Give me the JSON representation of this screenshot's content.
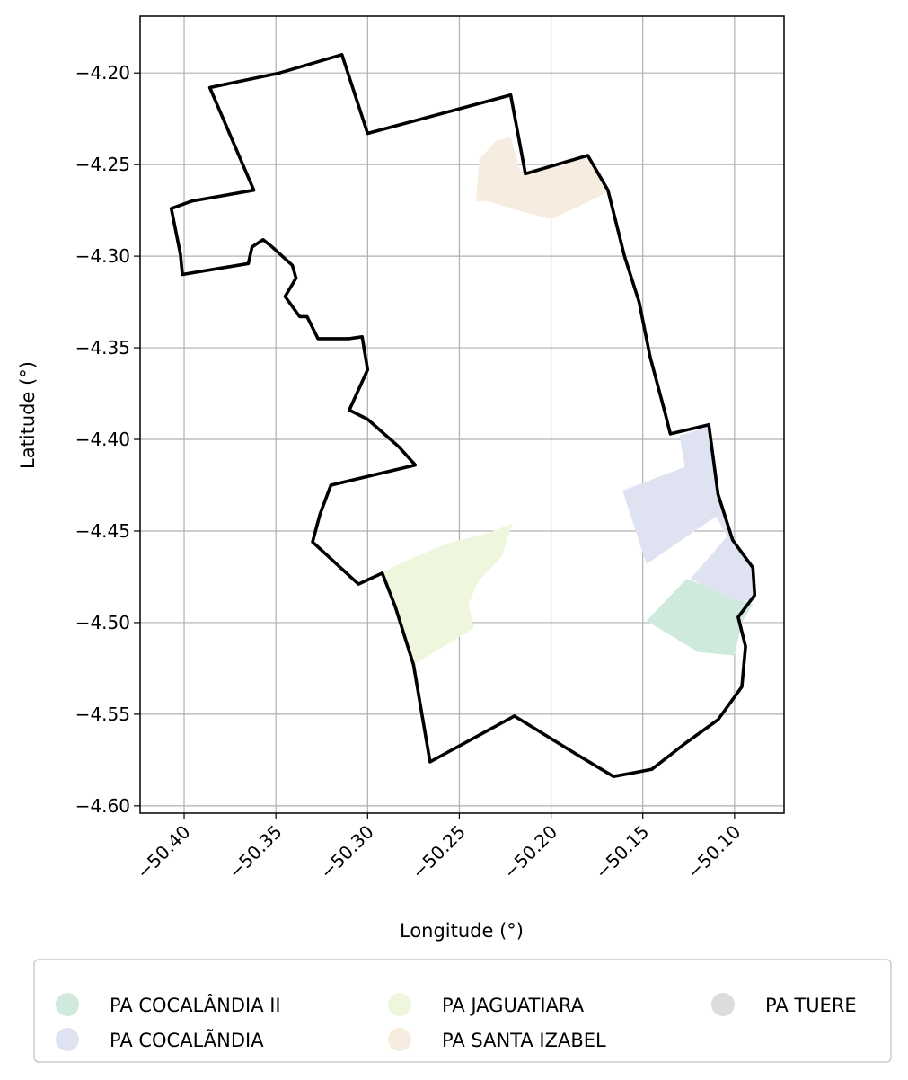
{
  "chart_data": {
    "type": "map",
    "xlabel": "Longitude (°)",
    "ylabel": "Latitude (°)",
    "xlim": [
      -50.424,
      -50.073
    ],
    "ylim": [
      -4.604,
      -4.169
    ],
    "x_ticks": [
      -50.4,
      -50.35,
      -50.3,
      -50.25,
      -50.2,
      -50.15,
      -50.1
    ],
    "x_tick_labels": [
      "−50.40",
      "−50.35",
      "−50.30",
      "−50.25",
      "−50.20",
      "−50.15",
      "−50.10"
    ],
    "y_ticks": [
      -4.2,
      -4.25,
      -4.3,
      -4.35,
      -4.4,
      -4.45,
      -4.5,
      -4.55,
      -4.6
    ],
    "y_tick_labels": [
      "−4.20",
      "−4.25",
      "−4.30",
      "−4.35",
      "−4.40",
      "−4.45",
      "−4.50",
      "−4.55",
      "−4.60"
    ],
    "grid": true,
    "legend_position": "bottom",
    "boundary": {
      "color": "#000000",
      "coords": [
        [
          -50.386,
          -4.208
        ],
        [
          -50.348,
          -4.2
        ],
        [
          -50.314,
          -4.19
        ],
        [
          -50.3,
          -4.233
        ],
        [
          -50.222,
          -4.212
        ],
        [
          -50.214,
          -4.255
        ],
        [
          -50.18,
          -4.245
        ],
        [
          -50.169,
          -4.264
        ],
        [
          -50.16,
          -4.3
        ],
        [
          -50.152,
          -4.325
        ],
        [
          -50.146,
          -4.355
        ],
        [
          -50.138,
          -4.385
        ],
        [
          -50.135,
          -4.397
        ],
        [
          -50.114,
          -4.392
        ],
        [
          -50.109,
          -4.43
        ],
        [
          -50.101,
          -4.455
        ],
        [
          -50.09,
          -4.47
        ],
        [
          -50.089,
          -4.485
        ],
        [
          -50.098,
          -4.497
        ],
        [
          -50.094,
          -4.513
        ],
        [
          -50.096,
          -4.535
        ],
        [
          -50.109,
          -4.553
        ],
        [
          -50.127,
          -4.566
        ],
        [
          -50.145,
          -4.58
        ],
        [
          -50.155,
          -4.582
        ],
        [
          -50.166,
          -4.584
        ],
        [
          -50.186,
          -4.572
        ],
        [
          -50.22,
          -4.551
        ],
        [
          -50.266,
          -4.576
        ],
        [
          -50.275,
          -4.523
        ],
        [
          -50.285,
          -4.491
        ],
        [
          -50.292,
          -4.473
        ],
        [
          -50.305,
          -4.479
        ],
        [
          -50.33,
          -4.456
        ],
        [
          -50.326,
          -4.441
        ],
        [
          -50.32,
          -4.425
        ],
        [
          -50.274,
          -4.414
        ],
        [
          -50.283,
          -4.404
        ],
        [
          -50.3,
          -4.389
        ],
        [
          -50.31,
          -4.384
        ],
        [
          -50.3,
          -4.362
        ],
        [
          -50.303,
          -4.344
        ],
        [
          -50.31,
          -4.345
        ],
        [
          -50.327,
          -4.345
        ],
        [
          -50.333,
          -4.333
        ],
        [
          -50.337,
          -4.333
        ],
        [
          -50.345,
          -4.322
        ],
        [
          -50.339,
          -4.312
        ],
        [
          -50.341,
          -4.305
        ],
        [
          -50.352,
          -4.295
        ],
        [
          -50.357,
          -4.291
        ],
        [
          -50.363,
          -4.295
        ],
        [
          -50.365,
          -4.304
        ],
        [
          -50.401,
          -4.31
        ],
        [
          -50.402,
          -4.299
        ],
        [
          -50.407,
          -4.274
        ],
        [
          -50.396,
          -4.27
        ],
        [
          -50.362,
          -4.264
        ],
        [
          -50.386,
          -4.208
        ]
      ]
    },
    "series": [
      {
        "name": "PA COCALÂNDIA II",
        "color": "#cfe9dd",
        "polygon": [
          [
            -50.148,
            -4.499
          ],
          [
            -50.126,
            -4.476
          ],
          [
            -50.09,
            -4.49
          ],
          [
            -50.096,
            -4.5
          ],
          [
            -50.1,
            -4.518
          ],
          [
            -50.12,
            -4.516
          ]
        ]
      },
      {
        "name": "PA COCALÃNDIA",
        "color": "#dfe3f1",
        "polygon": [
          [
            -50.161,
            -4.428
          ],
          [
            -50.127,
            -4.415
          ],
          [
            -50.13,
            -4.398
          ],
          [
            -50.114,
            -4.393
          ],
          [
            -50.109,
            -4.43
          ],
          [
            -50.101,
            -4.455
          ],
          [
            -50.09,
            -4.47
          ],
          [
            -50.089,
            -4.488
          ],
          [
            -50.1,
            -4.488
          ],
          [
            -50.124,
            -4.476
          ],
          [
            -50.104,
            -4.453
          ],
          [
            -50.11,
            -4.442
          ],
          [
            -50.148,
            -4.468
          ]
        ]
      },
      {
        "name": "PA JAGUATIARA",
        "color": "#eef7dd",
        "polygon": [
          [
            -50.293,
            -4.473
          ],
          [
            -50.274,
            -4.464
          ],
          [
            -50.254,
            -4.456
          ],
          [
            -50.237,
            -4.452
          ],
          [
            -50.221,
            -4.446
          ],
          [
            -50.227,
            -4.464
          ],
          [
            -50.24,
            -4.478
          ],
          [
            -50.245,
            -4.49
          ],
          [
            -50.242,
            -4.503
          ],
          [
            -50.275,
            -4.523
          ],
          [
            -50.285,
            -4.491
          ]
        ]
      },
      {
        "name": "PA SANTA IZABEL",
        "color": "#f6ede0",
        "polygon": [
          [
            -50.239,
            -4.247
          ],
          [
            -50.23,
            -4.237
          ],
          [
            -50.222,
            -4.235
          ],
          [
            -50.217,
            -4.253
          ],
          [
            -50.214,
            -4.255
          ],
          [
            -50.18,
            -4.245
          ],
          [
            -50.169,
            -4.265
          ],
          [
            -50.183,
            -4.272
          ],
          [
            -50.2,
            -4.28
          ],
          [
            -50.218,
            -4.275
          ],
          [
            -50.235,
            -4.27
          ],
          [
            -50.241,
            -4.27
          ]
        ]
      },
      {
        "name": "PA TUERE",
        "color": "#dcdcdc",
        "polygon": []
      }
    ]
  }
}
